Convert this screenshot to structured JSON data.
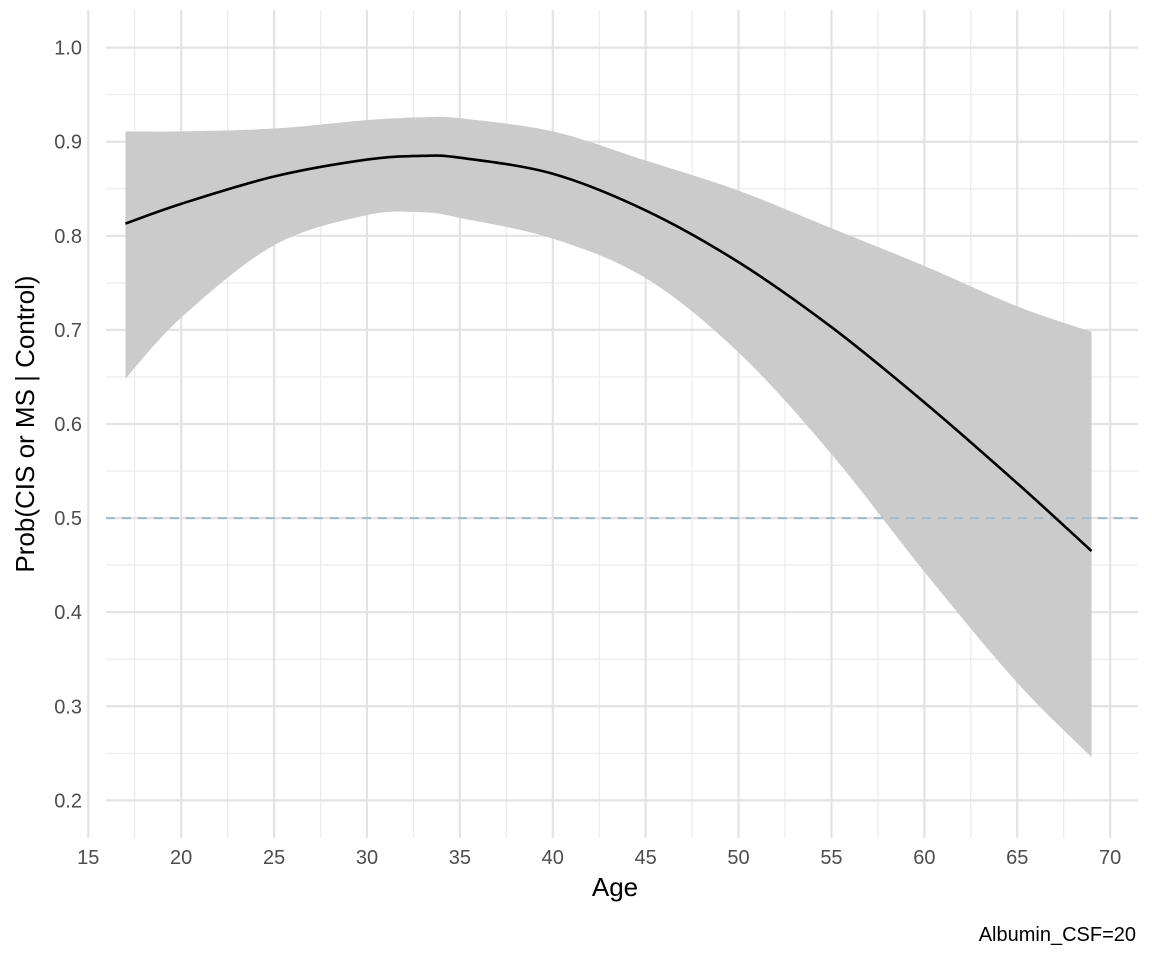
{
  "chart_data": {
    "type": "line",
    "xlabel": "Age",
    "ylabel": "Prob(CIS or MS | Control)",
    "caption": "Albumin_CSF=20",
    "xlim": [
      14.5,
      71.5
    ],
    "ylim": [
      0.16,
      1.04
    ],
    "x_ticks": [
      15,
      20,
      25,
      30,
      35,
      40,
      45,
      50,
      55,
      60,
      65,
      70
    ],
    "x_tick_labels": [
      "15",
      "20",
      "25",
      "30",
      "35",
      "40",
      "45",
      "50",
      "55",
      "60",
      "65",
      "70"
    ],
    "y_ticks": [
      0.2,
      0.3,
      0.4,
      0.5,
      0.6,
      0.7,
      0.8,
      0.9,
      1.0
    ],
    "y_tick_labels": [
      "0.2",
      "0.3",
      "0.4",
      "0.5",
      "0.6",
      "0.7",
      "0.8",
      "0.9",
      "1.0"
    ],
    "grid": true,
    "reference_line": {
      "y": 0.5,
      "style": "dashed",
      "color": "#a9b8cc"
    },
    "series": [
      {
        "x": [
          17,
          20,
          25,
          30,
          33,
          35,
          40,
          45,
          50,
          55,
          60,
          65,
          69
        ],
        "y": [
          0.813,
          0.834,
          0.863,
          0.881,
          0.885,
          0.883,
          0.866,
          0.827,
          0.772,
          0.703,
          0.623,
          0.537,
          0.465
        ],
        "lower": [
          0.648,
          0.713,
          0.79,
          0.822,
          0.825,
          0.819,
          0.797,
          0.755,
          0.676,
          0.568,
          0.443,
          0.325,
          0.246
        ],
        "upper": [
          0.911,
          0.911,
          0.914,
          0.923,
          0.926,
          0.925,
          0.911,
          0.88,
          0.848,
          0.808,
          0.768,
          0.725,
          0.698
        ],
        "line_color": "#000000",
        "band_color": "#cbcbcb"
      }
    ]
  }
}
